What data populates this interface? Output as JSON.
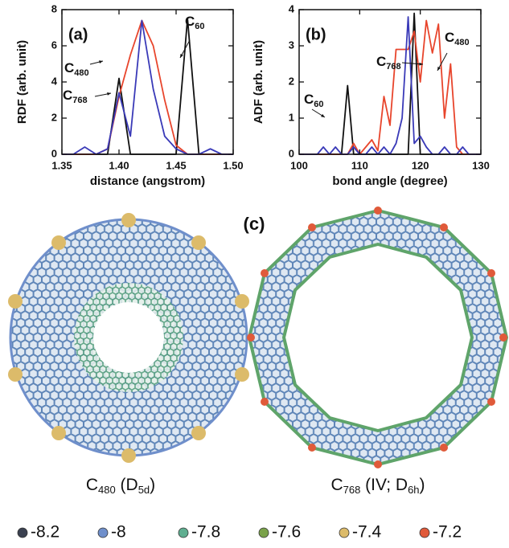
{
  "chart_data": [
    {
      "type": "line",
      "panel_label": "(a)",
      "x_label": "distance (angstrom)",
      "y_label": "RDF (arb. unit)",
      "x": [
        1.35,
        1.36,
        1.37,
        1.38,
        1.39,
        1.4,
        1.41,
        1.42,
        1.43,
        1.44,
        1.45,
        1.46,
        1.47,
        1.48,
        1.49,
        1.5
      ],
      "series": [
        {
          "color": "#111111",
          "values": [
            0,
            0,
            0,
            0,
            0,
            4.2,
            0,
            0,
            0,
            0,
            0,
            7.5,
            0,
            0,
            0,
            0
          ]
        },
        {
          "color": "#e8452c",
          "values": [
            0,
            0,
            0,
            0,
            0.3,
            3.2,
            5.5,
            7.4,
            6.0,
            3.0,
            0.5,
            0,
            0,
            0,
            0,
            0
          ]
        },
        {
          "color": "#3a3ab8",
          "values": [
            0,
            0,
            0.4,
            0,
            0.3,
            3.4,
            1.0,
            7.4,
            3.6,
            1.0,
            0.3,
            0,
            0,
            0.3,
            0,
            0
          ]
        }
      ],
      "annotations": [
        {
          "text": "C",
          "sub": "480"
        },
        {
          "text": "C",
          "sub": "768"
        },
        {
          "text": "C",
          "sub": "60"
        }
      ],
      "xlim": [
        1.35,
        1.5
      ],
      "xticks": [
        1.35,
        {
          "value": 1.4,
          "label": "1.40"
        },
        1.45,
        {
          "value": 1.5,
          "label": "1.50"
        }
      ],
      "ylim": [
        0,
        8
      ],
      "yticks": [
        0,
        2,
        4,
        6,
        8
      ]
    },
    {
      "type": "line",
      "panel_label": "(b)",
      "x_label": "bond angle (degree)",
      "y_label": "ADF (arb. unit)",
      "x": [
        100,
        101,
        102,
        103,
        104,
        105,
        106,
        107,
        108,
        109,
        110,
        111,
        112,
        113,
        114,
        115,
        116,
        117,
        118,
        119,
        120,
        121,
        122,
        123,
        124,
        125,
        126,
        127,
        128,
        129,
        130
      ],
      "series": [
        {
          "color": "#111111",
          "values": [
            0,
            0,
            0,
            0,
            0,
            0,
            0,
            0,
            1.9,
            0,
            0,
            0,
            0,
            0,
            0,
            0,
            0,
            0,
            0,
            3.9,
            0,
            0,
            0,
            0,
            0,
            0,
            0,
            0,
            0,
            0,
            0
          ]
        },
        {
          "color": "#e8452c",
          "values": [
            0,
            0,
            0,
            0,
            0,
            0,
            0,
            0,
            0,
            0.3,
            0,
            0.2,
            0.4,
            0.1,
            1.6,
            0.8,
            2.9,
            2.9,
            2.9,
            3.4,
            2.0,
            3.7,
            2.8,
            3.6,
            1.0,
            2.5,
            0.2,
            0,
            0,
            0,
            0
          ]
        },
        {
          "color": "#3a3ab8",
          "values": [
            0,
            0,
            0,
            0,
            0.2,
            0,
            0.2,
            0,
            0,
            0.2,
            0,
            0,
            0.2,
            0,
            0.2,
            0,
            0.3,
            1.0,
            3.8,
            0.3,
            0.5,
            0.2,
            0,
            0,
            0.2,
            0,
            0,
            0.2,
            0,
            0,
            0
          ]
        }
      ],
      "annotations": [
        {
          "text": "C",
          "sub": "768"
        },
        {
          "text": "C",
          "sub": "480"
        },
        {
          "text": "C",
          "sub": "60"
        }
      ],
      "xlim": [
        100,
        130
      ],
      "xticks": [
        100,
        110,
        120,
        130
      ],
      "ylim": [
        0,
        4
      ],
      "yticks": [
        0,
        1,
        2,
        3,
        4
      ]
    }
  ],
  "panel_c": {
    "label": "(c)",
    "captions": [
      [
        "C",
        "480",
        " (D",
        "5d",
        ")"
      ],
      [
        "C",
        "768",
        " (IV; D",
        "6h",
        ")"
      ]
    ]
  },
  "legend": [
    {
      "value": -8.2,
      "color": "#3b4150"
    },
    {
      "value": -8.0,
      "color": "#6f8fcb"
    },
    {
      "value": -7.8,
      "color": "#5fae90"
    },
    {
      "value": -7.6,
      "color": "#7aa24a"
    },
    {
      "value": -7.4,
      "color": "#dcbb6a"
    },
    {
      "value": -7.2,
      "color": "#e05a3a"
    }
  ]
}
